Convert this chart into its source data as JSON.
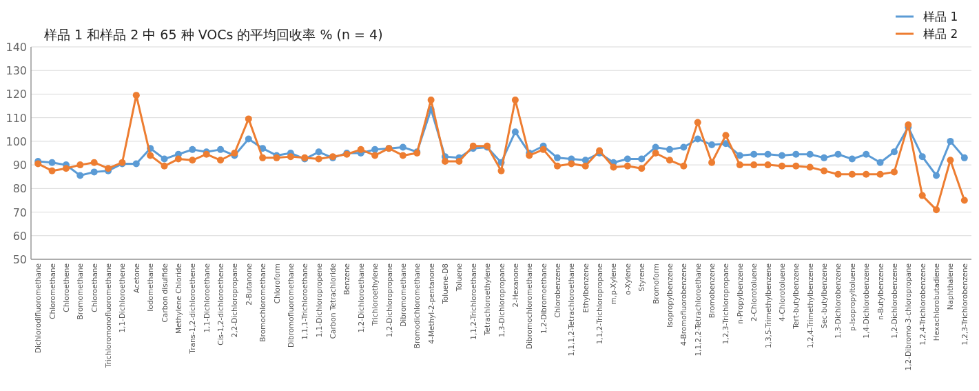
{
  "chart_data": {
    "type": "line",
    "title": "样品 1 和样品 2 中 65 种 VOCs 的平均回收率 % (n = 4)",
    "categories": [
      "Dichlorodifluoromethane",
      "Chloromethane",
      "Chloroethene",
      "Bromomethane",
      "Chloroethane",
      "Trichloromonofluoromethane",
      "1,1-Dichloroethene",
      "Acetone",
      "Iodomethane",
      "Carbon disulfide",
      "Methylene Chloride",
      "Trans-1,2-dichloroethene",
      "1,1-Dichloroethane",
      "Cis-1,2-dichloroethene",
      "2,2-Dichloropropane",
      "2-Butanone",
      "Bromochloromethane",
      "Chloroform",
      "Dibromofluoromethane",
      "1,1,1-Trichloroethane",
      "1,1-Dichloropropene",
      "Carbon Tetrachloride",
      "Benzene",
      "1,2-Dichloroethane",
      "Trichloroethylene",
      "1,2-Dichloropropane",
      "Dibromomethane",
      "Bromodichloromethane",
      "4-Methyl-2-pentanone",
      "Toluene-D8",
      "Toluene",
      "1,1,2-Trichloroethane",
      "Tetrachloroethylene",
      "1,3-Dichloropropane",
      "2-Hexanone",
      "Dibromochloromethane",
      "1,2-Dibromoethane",
      "Chlorobenzene",
      "1,1,1,2-Tetrachloroethane",
      "Ethylbenzene",
      "1,1,2-Trichloropropane",
      "m,p-Xylene",
      "o-Xylene",
      "Styrene",
      "Bromoform",
      "Isopropylbenzene",
      "4-Bromofluorobenzene",
      "1,1,2,2-Tetrachloroethane",
      "Bromobenzene",
      "1,2,3-Trichloropropane",
      "n-Propylbenzene",
      "2-Chlorotoluene",
      "1,3,5-Trimethylbenzene",
      "4-Chlorotoluene",
      "Tert-butylbenzene",
      "1,2,4-Trimethylbenzene",
      "Sec-butylbenzene",
      "1,3-Dichlorobenzene",
      "p-Isopropyltoluene",
      "1,4-Dichlorobenzene",
      "n-Butylbenzene",
      "1,2-Dichlorobenzene",
      "1,2-Dibromo-3-chloropropane",
      "1,2,4-Trichlorobenzene",
      "Hexachlorobutadiene",
      "Naphthalene",
      "1,2,3-Trichlorobenzene"
    ],
    "series": [
      {
        "name": "样品 1",
        "color": "#5b9bd5",
        "values": [
          91.5,
          91,
          90,
          85.5,
          87,
          87.5,
          90.5,
          90.5,
          97,
          92.5,
          94.5,
          96.5,
          95.5,
          96.5,
          94,
          101,
          97,
          94,
          95,
          92.5,
          95.5,
          93,
          95,
          95,
          96.5,
          97,
          97.5,
          95.5,
          113.5,
          93.5,
          93,
          97,
          97.5,
          91,
          104,
          95,
          98,
          93,
          92.5,
          92,
          95,
          91,
          92.5,
          92.5,
          97.5,
          96.5,
          97.5,
          101,
          98.5,
          99,
          94,
          94.5,
          94.5,
          94,
          94.5,
          94.5,
          93,
          94.5,
          92.5,
          94.5,
          91,
          95.5,
          106,
          93.5,
          85.5,
          100,
          93
        ]
      },
      {
        "name": "样品 2",
        "color": "#ed7d31",
        "values": [
          90.5,
          87.5,
          88.5,
          90,
          91,
          88.5,
          91,
          119.5,
          94,
          89.5,
          92.5,
          92,
          94.5,
          92,
          95,
          109.5,
          93,
          93,
          93.5,
          93,
          92.5,
          93.5,
          94.5,
          96.5,
          94,
          97,
          94,
          95,
          117.5,
          91.5,
          91.5,
          98,
          98,
          87.5,
          117.5,
          94,
          96.5,
          89.5,
          90.5,
          89.5,
          96,
          89,
          89.5,
          88.5,
          95,
          92,
          89.5,
          108,
          91,
          102.5,
          90,
          90,
          90,
          89.5,
          89.5,
          89,
          87.5,
          86,
          86,
          86,
          86,
          87,
          107,
          77,
          71,
          92,
          75
        ]
      }
    ],
    "ylim": [
      50,
      140
    ],
    "yticks": [
      50,
      60,
      70,
      80,
      90,
      100,
      110,
      120,
      130,
      140
    ],
    "grid": "y",
    "legend": "top right",
    "marker": "circle",
    "line_style": "solid"
  }
}
